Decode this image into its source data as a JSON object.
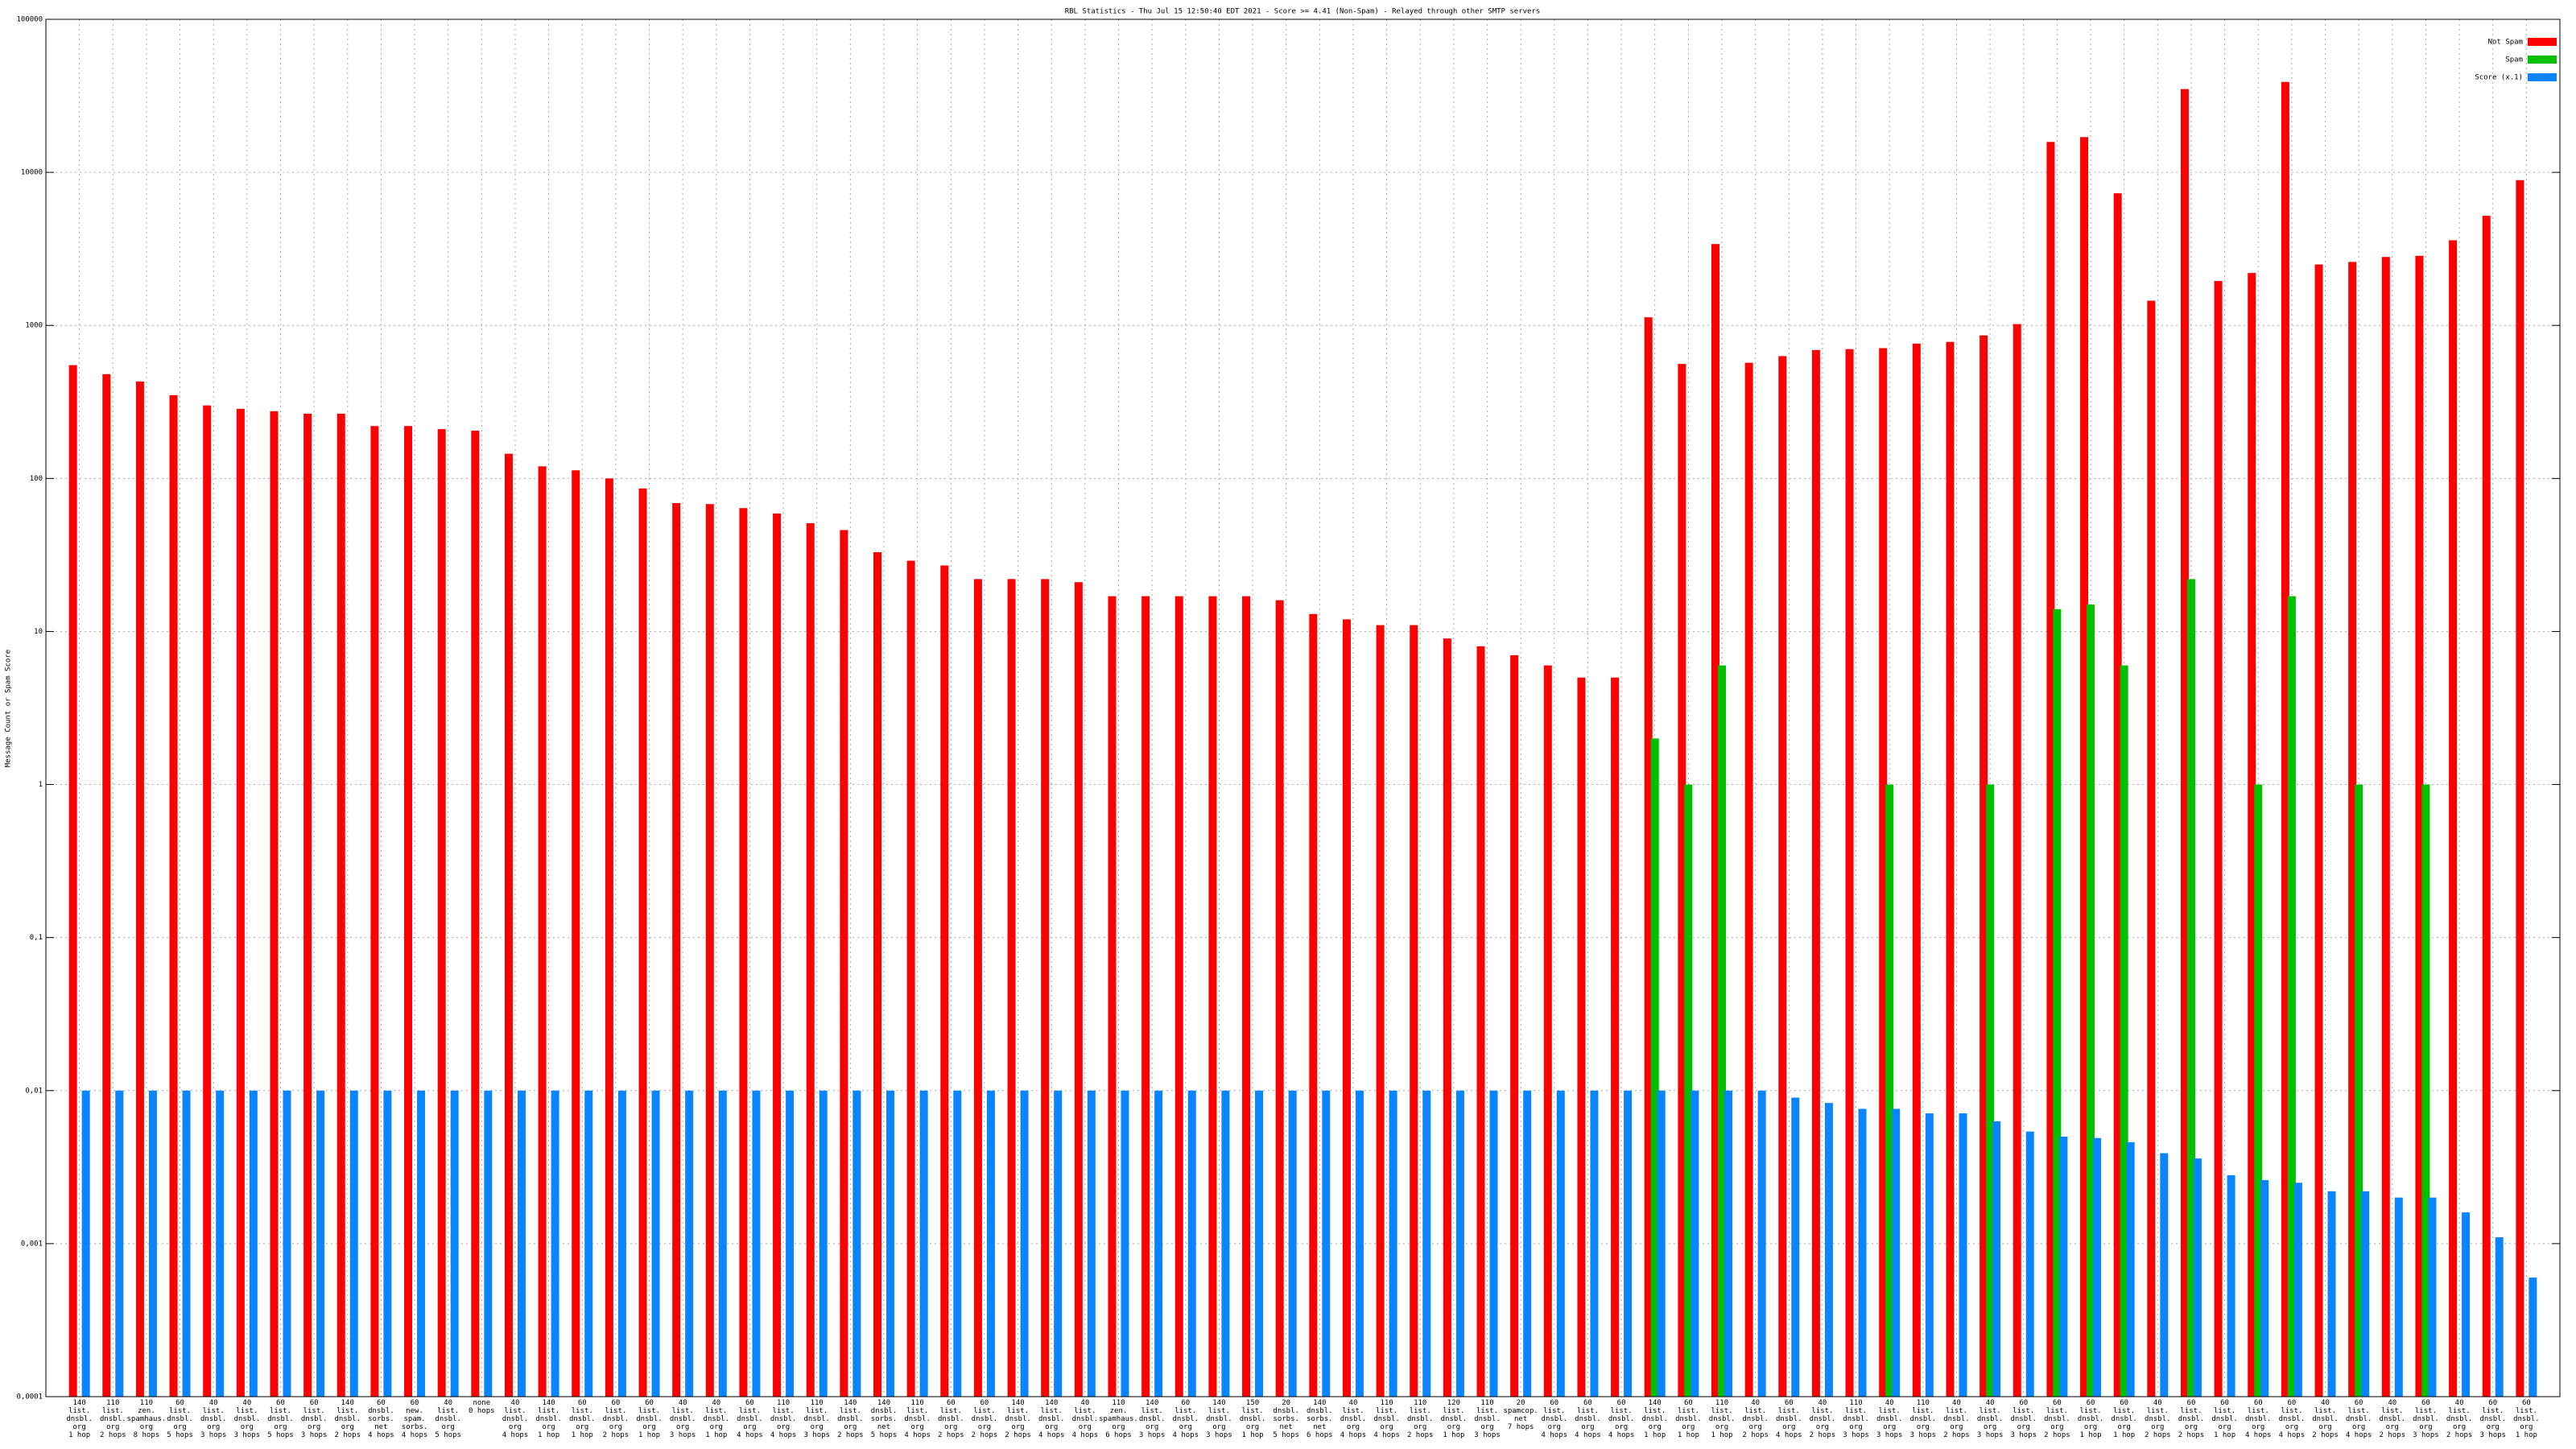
{
  "chart_data": {
    "type": "bar",
    "title": "RBL Statistics - Thu Jul 15 12:50:40 EDT 2021 - Score >= 4.41 (Non-Spam) - Relayed through other SMTP servers",
    "y_label": "Message Count or Spam Score",
    "log_y": true,
    "grid": true,
    "legend": "top-right",
    "ylim": [
      0.0001,
      100000
    ],
    "yticks": [
      {
        "value": 0.0001,
        "label": "0,0001"
      },
      {
        "value": 0.001,
        "label": "0,001"
      },
      {
        "value": 0.01,
        "label": "0,01"
      },
      {
        "value": 0.1,
        "label": "0,1"
      },
      1,
      10,
      100,
      1000,
      10000,
      100000
    ],
    "categories": [
      "140\nlist.\ndnsbl.\norg\n1 hop",
      "110\nlist.\ndnsbl.\norg\n2 hops",
      "110\nzen.\nspamhaus.\norg\n8 hops",
      "60\nlist.\ndnsbl.\norg\n5 hops",
      "40\nlist.\ndnsbl.\norg\n3 hops",
      "40\nlist.\ndnsbl.\norg\n3 hops",
      "60\nlist.\ndnsbl.\norg\n5 hops",
      "60\nlist.\ndnsbl.\norg\n3 hops",
      "140\nlist.\ndnsbl.\norg\n2 hops",
      "60\ndnsbl.\nsorbs.\nnet\n4 hops",
      "60\nnew.\nspam.\nsorbs.\n4 hops",
      "40\nlist.\ndnsbl.\norg\n5 hops",
      "none\n0 hops",
      "40\nlist.\ndnsbl.\norg\n4 hops",
      "140\nlist.\ndnsbl.\norg\n1 hop",
      "60\nlist.\ndnsbl.\norg\n1 hop",
      "60\nlist.\ndnsbl.\norg\n2 hops",
      "60\nlist.\ndnsbl.\norg\n1 hop",
      "40\nlist.\ndnsbl.\norg\n3 hops",
      "40\nlist.\ndnsbl.\norg\n1 hop",
      "60\nlist.\ndnsbl.\norg\n4 hops",
      "110\nlist.\ndnsbl.\norg\n4 hops",
      "110\nlist.\ndnsbl.\norg\n3 hops",
      "140\nlist.\ndnsbl.\norg\n2 hops",
      "140\ndnsbl.\nsorbs.\nnet\n5 hops",
      "110\nlist.\ndnsbl.\norg\n4 hops",
      "60\nlist.\ndnsbl.\norg\n2 hops",
      "60\nlist.\ndnsbl.\norg\n2 hops",
      "140\nlist.\ndnsbl.\norg\n2 hops",
      "140\nlist.\ndnsbl.\norg\n4 hops",
      "40\nlist.\ndnsbl.\norg\n4 hops",
      "110\nzen.\nspamhaus.\norg\n6 hops",
      "140\nlist.\ndnsbl.\norg\n3 hops",
      "60\nlist.\ndnsbl.\norg\n4 hops",
      "140\nlist.\ndnsbl.\norg\n3 hops",
      "150\nlist.\ndnsbl.\norg\n1 hop",
      "20\ndnsbl.\nsorbs.\nnet\n5 hops",
      "140\ndnsbl.\nsorbs.\nnet\n6 hops",
      "40\nlist.\ndnsbl.\norg\n4 hops",
      "110\nlist.\ndnsbl.\norg\n4 hops",
      "110\nlist.\ndnsbl.\norg\n2 hops",
      "120\nlist.\ndnsbl.\norg\n1 hop",
      "110\nlist.\ndnsbl.\norg\n3 hops",
      "20\nspamcop.\nnet\n7 hops",
      "60\nlist.\ndnsbl.\norg\n4 hops",
      "60\nlist.\ndnsbl.\norg\n4 hops",
      "60\nlist.\ndnsbl.\norg\n4 hops",
      "140\nlist.\ndnsbl.\norg\n1 hop",
      "60\nlist.\ndnsbl.\norg\n1 hop",
      "110\nlist.\ndnsbl.\norg\n1 hop",
      "40\nlist.\ndnsbl.\norg\n2 hops",
      "60\nlist.\ndnsbl.\norg\n4 hops",
      "40\nlist.\ndnsbl.\norg\n2 hops",
      "110\nlist.\ndnsbl.\norg\n3 hops",
      "40\nlist.\ndnsbl.\norg\n3 hops",
      "110\nlist.\ndnsbl.\norg\n3 hops",
      "40\nlist.\ndnsbl.\norg\n2 hops",
      "40\nlist.\ndnsbl.\norg\n3 hops",
      "60\nlist.\ndnsbl.\norg\n3 hops",
      "60\nlist.\ndnsbl.\norg\n2 hops",
      "60\nlist.\ndnsbl.\norg\n1 hop",
      "60\nlist.\ndnsbl.\norg\n1 hop",
      "40\nlist.\ndnsbl.\norg\n2 hops",
      "60\nlist.\ndnsbl.\norg\n2 hops",
      "60\nlist.\ndnsbl.\norg\n1 hop",
      "60\nlist.\ndnsbl.\norg\n4 hops",
      "60\nlist.\ndnsbl.\norg\n4 hops",
      "40\nlist.\ndnsbl.\norg\n2 hops",
      "60\nlist.\ndnsbl.\norg\n4 hops",
      "40\nlist.\ndnsbl.\norg\n2 hops",
      "60\nlist.\ndnsbl.\norg\n3 hops",
      "40\nlist.\ndnsbl.\norg\n2 hops",
      "60\nlist.\ndnsbl.\norg\n3 hops",
      "60\nlist.\ndnsbl.\norg\n1 hop"
    ],
    "series": [
      {
        "name": "Not Spam",
        "color": "#ff0000",
        "values": [
          550,
          480,
          430,
          350,
          300,
          285,
          275,
          265,
          265,
          220,
          220,
          210,
          205,
          145,
          120,
          113,
          100,
          86,
          69,
          68,
          64,
          59,
          51,
          46,
          33,
          29,
          27,
          22,
          22,
          22,
          21,
          17,
          17,
          17,
          17,
          17,
          16,
          13,
          12,
          11,
          11,
          9,
          8,
          7,
          6,
          5,
          5,
          1130,
          560,
          3400,
          570,
          630,
          690,
          700,
          710,
          760,
          780,
          860,
          1020,
          15800,
          17000,
          7300,
          1450,
          35000,
          1950,
          2200,
          39000,
          2500,
          2600,
          2800,
          2850,
          3600,
          5200,
          8900
        ]
      },
      {
        "name": "Spam",
        "color": "#00c000",
        "values": [
          null,
          null,
          null,
          null,
          null,
          null,
          null,
          null,
          null,
          null,
          null,
          null,
          null,
          null,
          null,
          null,
          null,
          null,
          null,
          null,
          null,
          null,
          null,
          null,
          null,
          null,
          null,
          null,
          null,
          null,
          null,
          null,
          null,
          null,
          null,
          null,
          null,
          null,
          null,
          null,
          null,
          null,
          null,
          null,
          null,
          null,
          null,
          2,
          1,
          6,
          null,
          null,
          null,
          null,
          1,
          null,
          null,
          1,
          null,
          14,
          15,
          6,
          null,
          22,
          null,
          1,
          17,
          null,
          1,
          null,
          1,
          null,
          null,
          null
        ]
      },
      {
        "name": "Score (x.1)",
        "color": "#0a84ff",
        "values": [
          0.01,
          0.01,
          0.01,
          0.01,
          0.01,
          0.01,
          0.01,
          0.01,
          0.01,
          0.01,
          0.01,
          0.01,
          0.01,
          0.01,
          0.01,
          0.01,
          0.01,
          0.01,
          0.01,
          0.01,
          0.01,
          0.01,
          0.01,
          0.01,
          0.01,
          0.01,
          0.01,
          0.01,
          0.01,
          0.01,
          0.01,
          0.01,
          0.01,
          0.01,
          0.01,
          0.01,
          0.01,
          0.01,
          0.01,
          0.01,
          0.01,
          0.01,
          0.01,
          0.01,
          0.01,
          0.01,
          0.01,
          0.01,
          0.01,
          0.01,
          0.01,
          0.009,
          0.0083,
          0.0076,
          0.0076,
          0.0071,
          0.0071,
          0.0063,
          0.0054,
          0.005,
          0.0049,
          0.0046,
          0.0039,
          0.0036,
          0.0028,
          0.0026,
          0.0025,
          0.0022,
          0.0022,
          0.002,
          0.002,
          0.0016,
          0.0011,
          0.0006
        ]
      }
    ]
  }
}
